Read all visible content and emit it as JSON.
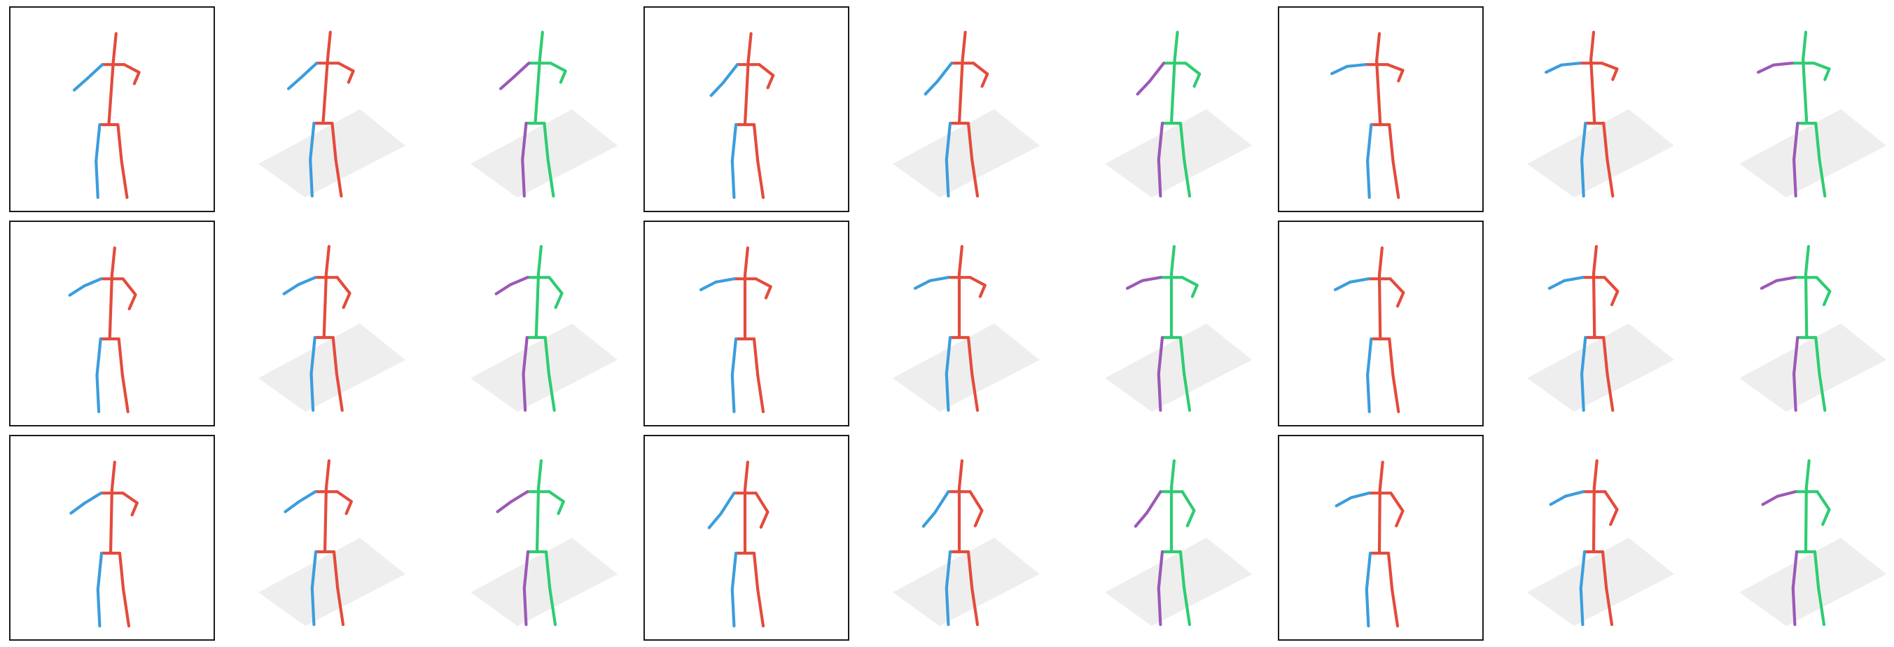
{
  "colors": {
    "left_limb": "#3b9ddd",
    "right_limb": "#e34b3c",
    "gt_left_limb": "#9b59b6",
    "gt_right_limb": "#2ecc71",
    "ground_plane": "#eeeeee",
    "frame_border": "#1a1a1a"
  },
  "layout_spec": {
    "rows": 3,
    "groups_per_row": 3,
    "panels_per_group": [
      "2d-input",
      "3d-prediction",
      "3d-ground-truth"
    ]
  },
  "poses": [
    {
      "style": 0,
      "sway": -0.1,
      "lean": 0.1,
      "larm_up": 0.35,
      "rarm_up": 0.7
    },
    {
      "style": 0,
      "sway": 0.0,
      "lean": 0.12,
      "larm_up": 0.2,
      "rarm_up": 0.55
    },
    {
      "style": 1,
      "sway": 0.05,
      "lean": -0.1,
      "larm_up": 0.8,
      "rarm_up": 0.8
    },
    {
      "style": 0,
      "sway": -0.05,
      "lean": 0.05,
      "larm_up": 0.6,
      "rarm_up": 0.3
    },
    {
      "style": 2,
      "sway": 0.0,
      "lean": 0.0,
      "larm_up": 0.75,
      "rarm_up": 0.7
    },
    {
      "style": 2,
      "sway": 0.05,
      "lean": 0.0,
      "larm_up": 0.75,
      "rarm_up": 0.4
    },
    {
      "style": 0,
      "sway": 0.0,
      "lean": 0.05,
      "larm_up": 0.5,
      "rarm_up": 0.6
    },
    {
      "style": 3,
      "sway": 0.0,
      "lean": 0.0,
      "larm_up": 0.1,
      "rarm_up": 0.15
    },
    {
      "style": 2,
      "sway": 0.0,
      "lean": 0.02,
      "larm_up": 0.7,
      "rarm_up": 0.2
    }
  ]
}
